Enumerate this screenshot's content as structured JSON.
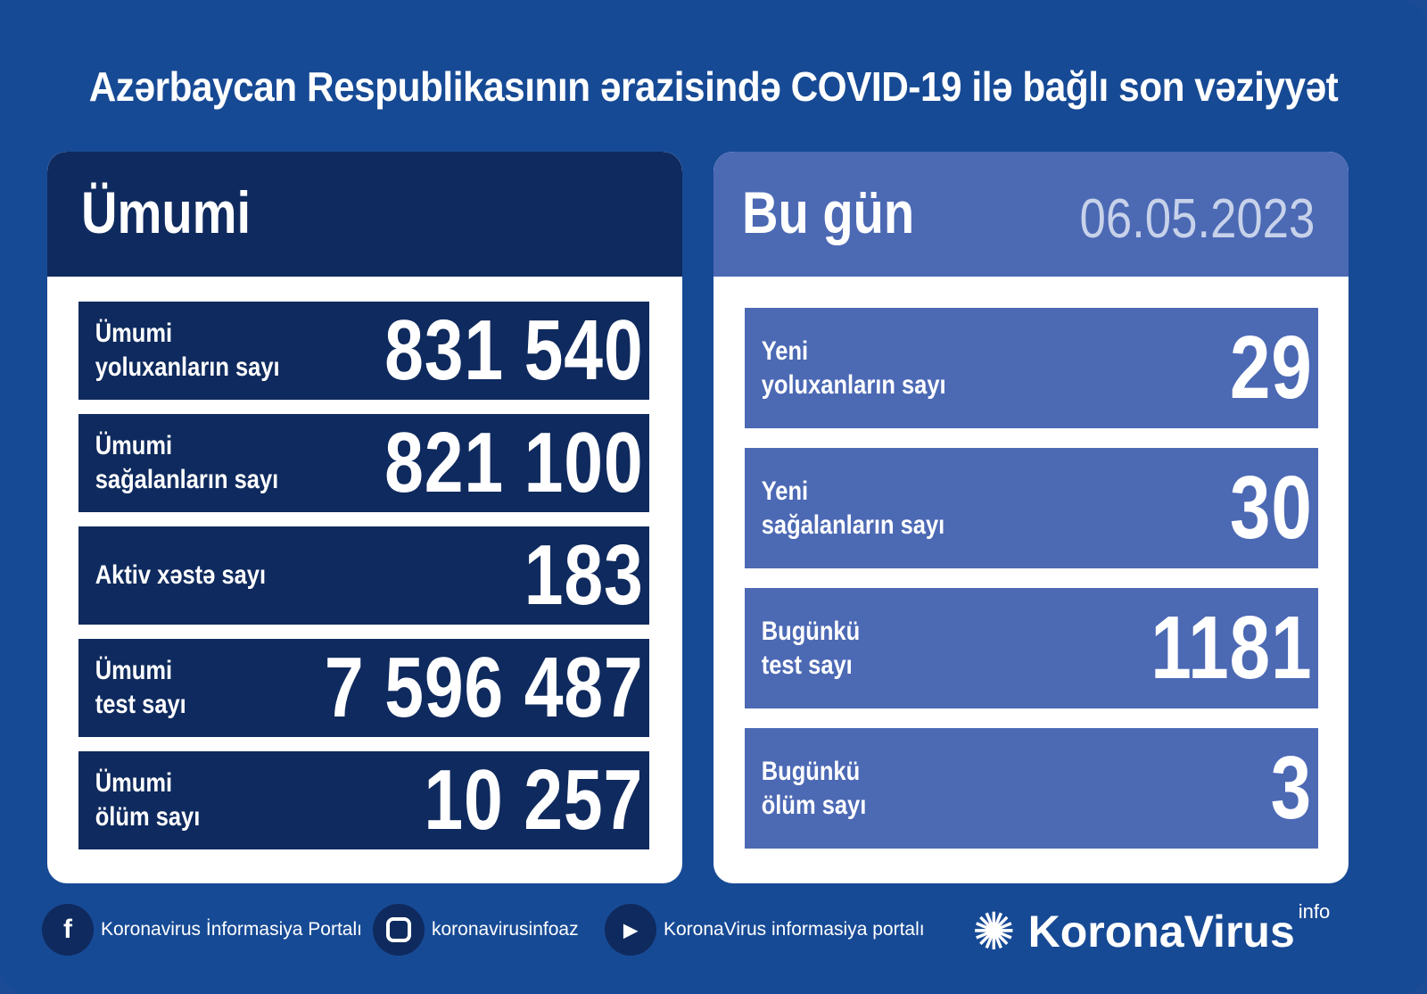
{
  "title": "Azərbaycan Respublikasının ərazisində COVID-19 ilə bağlı son vəziyyət",
  "colors": {
    "background": "#174a95",
    "dark_panel": "#0f2a5e",
    "light_panel": "#4c69b4",
    "card": "#ffffff"
  },
  "total": {
    "heading": "Ümumi",
    "rows": [
      {
        "label": "Ümumi\nyoluxanların sayı",
        "value": "831 540"
      },
      {
        "label": "Ümumi\nsağalanların sayı",
        "value": "821 100"
      },
      {
        "label": "Aktiv xəstə sayı",
        "value": "183"
      },
      {
        "label": "Ümumi\ntest sayı",
        "value": "7 596 487"
      },
      {
        "label": "Ümumi\nölüm sayı",
        "value": "10 257"
      }
    ]
  },
  "today": {
    "heading": "Bu gün",
    "date": "06.05.2023",
    "rows": [
      {
        "label": "Yeni\nyoluxanların sayı",
        "value": "29"
      },
      {
        "label": "Yeni\nsağalanların sayı",
        "value": "30"
      },
      {
        "label": "Bugünkü\ntest sayı",
        "value": "1181"
      },
      {
        "label": "Bugünkü\nölüm sayı",
        "value": "3"
      }
    ]
  },
  "footer": {
    "facebook": "Koronavirus İnformasiya Portalı",
    "instagram": "koronavirusinfoaz",
    "youtube": "KoronaVirus informasiya portalı",
    "logo_name": "KoronaVirus",
    "logo_sup": "info"
  }
}
